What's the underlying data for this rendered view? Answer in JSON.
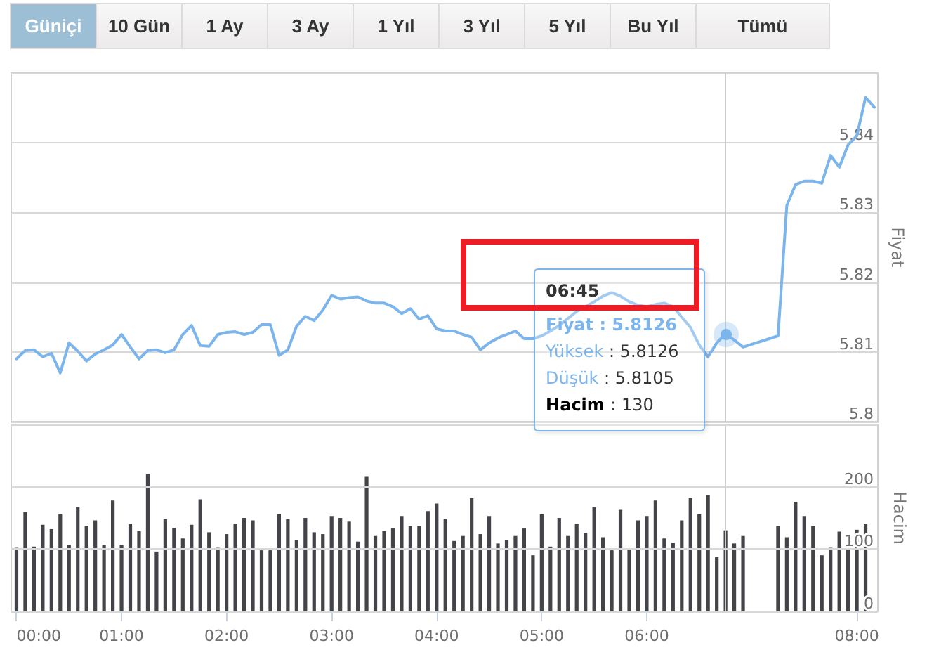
{
  "chart_data": [
    {
      "type": "other",
      "annotations": [
        "Güniçi",
        "10 Gün",
        "1 Ay",
        "3 Ay",
        "1 Yıl",
        "3 Yıl",
        "5 Yıl",
        "Bu Yıl",
        "Tümü"
      ]
    },
    {
      "type": "line",
      "ylabel": "Fiyat",
      "color": "#7cb5ec",
      "x": [
        0,
        0.0833,
        0.1667,
        0.25,
        0.3333,
        0.4167,
        0.5,
        0.5833,
        0.6667,
        0.75,
        0.8333,
        0.9167,
        1,
        1.0833,
        1.1667,
        1.25,
        1.3333,
        1.4167,
        1.5,
        1.5833,
        1.6667,
        1.75,
        1.8333,
        1.9167,
        2,
        2.0833,
        2.1667,
        2.25,
        2.3333,
        2.4167,
        2.5,
        2.5833,
        2.6667,
        2.75,
        2.8333,
        2.9167,
        3,
        3.0833,
        3.1667,
        3.25,
        3.3333,
        3.4167,
        3.5,
        3.5833,
        3.6667,
        3.75,
        3.8333,
        3.9167,
        4,
        4.0833,
        4.1667,
        4.25,
        4.3333,
        4.4167,
        4.5,
        4.5833,
        4.6667,
        4.75,
        4.8333,
        4.9167,
        5,
        5.0833,
        5.1667,
        5.25,
        5.3333,
        5.4167,
        5.5,
        5.5833,
        5.6667,
        5.75,
        5.8333,
        5.9167,
        6,
        6.0833,
        6.1667,
        6.25,
        6.3333,
        6.4167,
        6.5,
        6.5833,
        6.6667,
        6.75,
        6.8333,
        6.9167,
        7.25,
        7.3333,
        7.4167,
        7.5,
        7.5833,
        7.6667,
        7.75,
        7.8333,
        7.9167,
        8,
        8.0833,
        8.1667
      ],
      "values": [
        5.809,
        5.8102,
        5.8103,
        5.8093,
        5.8098,
        5.807,
        5.8113,
        5.8101,
        5.8087,
        5.8097,
        5.8103,
        5.811,
        5.8125,
        5.8107,
        5.809,
        5.8102,
        5.8103,
        5.8099,
        5.8103,
        5.8125,
        5.8138,
        5.8109,
        5.8108,
        5.8125,
        5.8128,
        5.8129,
        5.8125,
        5.8128,
        5.8139,
        5.8139,
        5.8095,
        5.8103,
        5.8137,
        5.8151,
        5.8145,
        5.816,
        5.8181,
        5.8176,
        5.8178,
        5.8179,
        5.8173,
        5.817,
        5.817,
        5.8165,
        5.8155,
        5.8162,
        5.8147,
        5.8152,
        5.8133,
        5.813,
        5.813,
        5.8125,
        5.8121,
        5.8103,
        5.8113,
        5.812,
        5.8125,
        5.813,
        5.8119,
        5.8119,
        5.8123,
        5.813,
        5.8138,
        5.8148,
        5.8158,
        5.8165,
        5.8172,
        5.818,
        5.8185,
        5.818,
        5.8172,
        5.8167,
        5.8165,
        5.8168,
        5.817,
        5.8165,
        5.815,
        5.8135,
        5.811,
        5.8093,
        5.8113,
        5.8126,
        5.8117,
        5.8107,
        5.8123,
        5.831,
        5.834,
        5.8345,
        5.8345,
        5.8342,
        5.8382,
        5.8365,
        5.8397,
        5.841,
        5.8465,
        5.8451
      ],
      "xlim": [
        -0.05,
        8.2
      ],
      "ylim": [
        5.8,
        5.85
      ],
      "yticks": [
        5.8,
        5.81,
        5.82,
        5.83,
        5.84,
        {
          "value": 5.85,
          "label": null
        }
      ],
      "grid": "y",
      "tick_labels": "y",
      "ref_lines": [
        {
          "axis": "x",
          "value": 6.75,
          "color": "#cccccc"
        }
      ],
      "annotations": [
        "06:45",
        "Fiyat : 5.8126",
        "Yüksek : 5.8126",
        "Düşük : 5.8105",
        "Hacim : 130"
      ]
    },
    {
      "type": "bar",
      "ylabel": "Hacim",
      "color": "#434348",
      "x": [
        0,
        0.0833,
        0.1667,
        0.25,
        0.3333,
        0.4167,
        0.5,
        0.5833,
        0.6667,
        0.75,
        0.8333,
        0.9167,
        1,
        1.0833,
        1.1667,
        1.25,
        1.3333,
        1.4167,
        1.5,
        1.5833,
        1.6667,
        1.75,
        1.8333,
        1.9167,
        2,
        2.0833,
        2.1667,
        2.25,
        2.3333,
        2.4167,
        2.5,
        2.5833,
        2.6667,
        2.75,
        2.8333,
        2.9167,
        3,
        3.0833,
        3.1667,
        3.25,
        3.3333,
        3.4167,
        3.5,
        3.5833,
        3.6667,
        3.75,
        3.8333,
        3.9167,
        4,
        4.0833,
        4.1667,
        4.25,
        4.3333,
        4.4167,
        4.5,
        4.5833,
        4.6667,
        4.75,
        4.8333,
        4.9167,
        5,
        5.0833,
        5.1667,
        5.25,
        5.3333,
        5.4167,
        5.5,
        5.5833,
        5.6667,
        5.75,
        5.8333,
        5.9167,
        6,
        6.0833,
        6.1667,
        6.25,
        6.3333,
        6.4167,
        6.5,
        6.5833,
        6.6667,
        6.75,
        6.8333,
        6.9167,
        7.25,
        7.3333,
        7.4167,
        7.5,
        7.5833,
        7.6667,
        7.75,
        7.8333,
        7.9167,
        8,
        8.0833
      ],
      "values": [
        102,
        159,
        104,
        139,
        132,
        156,
        107,
        168,
        137,
        146,
        107,
        178,
        107,
        141,
        129,
        221,
        96,
        148,
        134,
        117,
        139,
        180,
        127,
        102,
        124,
        141,
        150,
        146,
        98,
        98,
        156,
        148,
        115,
        150,
        127,
        124,
        153,
        150,
        144,
        112,
        216,
        121,
        129,
        133,
        153,
        137,
        137,
        161,
        173,
        148,
        113,
        121,
        182,
        124,
        153,
        109,
        115,
        121,
        133,
        90,
        156,
        104,
        150,
        121,
        141,
        126,
        168,
        119,
        98,
        163,
        100,
        146,
        153,
        178,
        117,
        110,
        146,
        182,
        156,
        187,
        87,
        130,
        109,
        121,
        137,
        119,
        176,
        153,
        137,
        90,
        102,
        128,
        102,
        131,
        141
      ],
      "xlim": [
        -0.05,
        8.2
      ],
      "xticks": [
        {
          "value": 0,
          "label": "00:00"
        },
        {
          "value": 1,
          "label": "01:00"
        },
        {
          "value": 2,
          "label": "02:00"
        },
        {
          "value": 3,
          "label": "03:00"
        },
        {
          "value": 4,
          "label": "04:00"
        },
        {
          "value": 5,
          "label": "05:00"
        },
        {
          "value": 6,
          "label": "06:00"
        },
        {
          "value": 8,
          "label": "08:00"
        }
      ],
      "ylim": [
        0,
        300
      ],
      "yticks": [
        0,
        100,
        200,
        {
          "value": 300,
          "label": null
        }
      ],
      "grid": "y",
      "ref_lines": [
        {
          "axis": "x",
          "value": 6.75,
          "color": "#cccccc"
        }
      ]
    }
  ]
}
